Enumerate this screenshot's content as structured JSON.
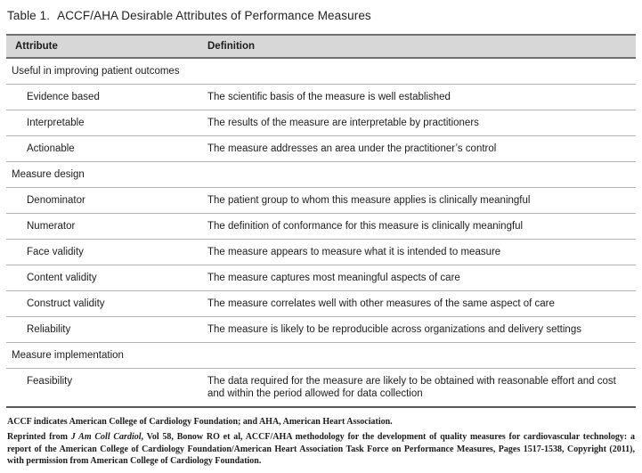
{
  "title": {
    "label": "Table 1.",
    "text": "ACCF/AHA Desirable Attributes of Performance Measures"
  },
  "table": {
    "columns": {
      "attribute": "Attribute",
      "definition": "Definition"
    },
    "sections": [
      {
        "header": "Useful in improving patient outcomes",
        "rows": [
          {
            "attribute": "Evidence based",
            "definition": "The scientific basis of the measure is well established"
          },
          {
            "attribute": "Interpretable",
            "definition": "The results of the measure are interpretable by practitioners"
          },
          {
            "attribute": "Actionable",
            "definition": "The measure addresses an area under the practitioner’s control"
          }
        ]
      },
      {
        "header": "Measure design",
        "rows": [
          {
            "attribute": "Denominator",
            "definition": "The patient group to whom this measure applies is clinically meaningful"
          },
          {
            "attribute": "Numerator",
            "definition": "The definition of conformance for this measure is clinically meaningful"
          },
          {
            "attribute": "Face validity",
            "definition": "The measure appears to measure what it is intended to measure"
          },
          {
            "attribute": "Content validity",
            "definition": "The measure captures most meaningful aspects of care"
          },
          {
            "attribute": "Construct validity",
            "definition": "The measure correlates well with other measures of the same aspect of care"
          },
          {
            "attribute": "Reliability",
            "definition": "The measure is likely to be reproducible across organizations and delivery settings"
          }
        ]
      },
      {
        "header": "Measure implementation",
        "rows": [
          {
            "attribute": "Feasibility",
            "definition": "The data required for the measure are likely to be obtained with reasonable effort and cost and within the period allowed for data collection"
          }
        ]
      }
    ]
  },
  "footnotes": {
    "abbreviations": "ACCF indicates American College of Cardiology Foundation; and AHA, American Heart Association.",
    "reprint_prefix": "Reprinted from ",
    "reprint_source": "J Am Coll Cardiol",
    "reprint_rest": ", Vol 58, Bonow RO et al, ACCF/AHA methodology for the development of quality measures for cardiovascular technology: a report of the American College of Cardiology Foundation/American Heart Association Task Force on Performance Measures, Pages 1517-1538, Copyright (2011), with permission from American College of Cardiology Foundation."
  },
  "colors": {
    "header_bg": "#d7d7d7",
    "border_dark": "#6f6f6f",
    "border_bottom": "#595959",
    "row_divider": "#b3b3b3",
    "text": "#1c1c1c"
  }
}
